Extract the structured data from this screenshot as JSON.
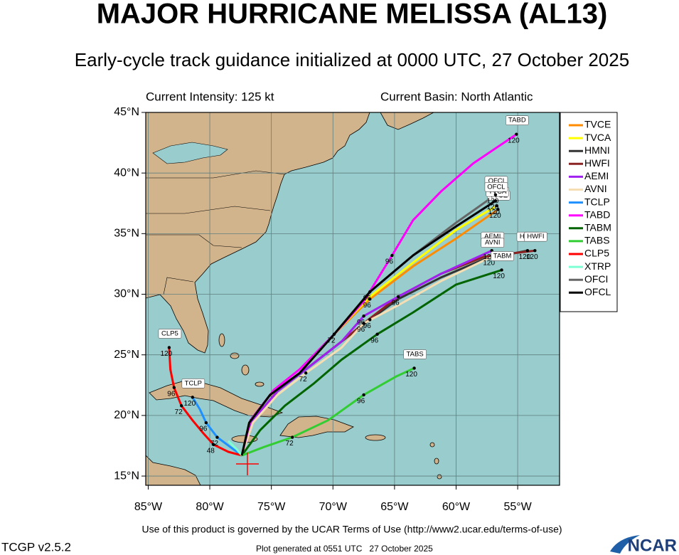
{
  "header": {
    "title": "MAJOR HURRICANE MELISSA (AL13)",
    "subtitle": "Early-cycle track guidance initialized at 0000 UTC, 27 October 2025",
    "current_intensity": "Current Intensity: 125 kt",
    "current_basin": "Current Basin: North Atlantic"
  },
  "map": {
    "xlim": [
      -85.2,
      -51.6
    ],
    "ylim": [
      14.24,
      45
    ],
    "xticks": [
      {
        "value": -85,
        "label": "85°W"
      },
      {
        "value": -80,
        "label": "80°W"
      },
      {
        "value": -75,
        "label": "75°W"
      },
      {
        "value": -70,
        "label": "70°W"
      },
      {
        "value": -65,
        "label": "65°W"
      },
      {
        "value": -60,
        "label": "60°W"
      },
      {
        "value": -55,
        "label": "55°W"
      }
    ],
    "yticks": [
      {
        "value": 15,
        "label": "15°N"
      },
      {
        "value": 20,
        "label": "20°N"
      },
      {
        "value": 25,
        "label": "25°N"
      },
      {
        "value": 30,
        "label": "30°N"
      },
      {
        "value": 35,
        "label": "35°N"
      },
      {
        "value": 40,
        "label": "40°N"
      },
      {
        "value": 45,
        "label": "45°N"
      }
    ],
    "grid": true,
    "tracks": [
      {
        "name": "TVCE",
        "color": "#ff8c00",
        "lon": [
          -77.4,
          -76.8,
          -75.1,
          -72.7,
          -69.9,
          -67.0,
          -63.5,
          -60.0,
          -56.6
        ],
        "lat": [
          16.7,
          19.4,
          21.7,
          23.5,
          26.7,
          29.6,
          32.3,
          34.6,
          37.0
        ],
        "taus": [
          null,
          null,
          null,
          null,
          72,
          96,
          null,
          null,
          120
        ]
      },
      {
        "name": "TVCA",
        "color": "#ffff00",
        "lon": [
          -77.4,
          -76.8,
          -75.1,
          -72.7,
          -69.9,
          -67.0,
          -63.5,
          -60.0,
          -56.7
        ],
        "lat": [
          16.7,
          19.4,
          21.7,
          23.5,
          26.7,
          29.8,
          32.6,
          35.3,
          37.3
        ],
        "taus": [
          null,
          null,
          null,
          null,
          null,
          null,
          null,
          null,
          120
        ]
      },
      {
        "name": "HMNI",
        "color": "#333333",
        "lon": [
          -77.4,
          -76.5,
          -74.5,
          -72.2,
          -69.3,
          -67.0,
          -64.7,
          -61.2,
          -57.7,
          -54.2
        ],
        "lat": [
          16.7,
          19.6,
          22.0,
          23.8,
          26.1,
          27.9,
          29.6,
          31.4,
          32.9,
          33.6
        ],
        "taus": [
          null,
          null,
          null,
          null,
          null,
          96,
          null,
          null,
          null,
          120
        ]
      },
      {
        "name": "HWFI",
        "color": "#8b2323",
        "lon": [
          -77.4,
          -76.5,
          -74.5,
          -72.2,
          -69.3,
          -67.0,
          -64.7,
          -61.2,
          -57.7,
          -53.6
        ],
        "lat": [
          16.7,
          19.6,
          22.0,
          23.8,
          26.1,
          28.0,
          29.8,
          31.7,
          33.1,
          33.6
        ],
        "taus": [
          null,
          null,
          null,
          null,
          null,
          null,
          96,
          null,
          null,
          120
        ]
      },
      {
        "name": "AEMI",
        "color": "#a020f0",
        "lon": [
          -77.4,
          -76.5,
          -74.5,
          -72.2,
          -69.3,
          -67.5,
          -64.7,
          -61.2,
          -57.1
        ],
        "lat": [
          16.7,
          19.6,
          22.0,
          23.8,
          26.1,
          28.2,
          29.8,
          31.7,
          33.6
        ],
        "taus": [
          null,
          null,
          null,
          null,
          null,
          96,
          null,
          null,
          120
        ]
      },
      {
        "name": "AVNI",
        "color": "#f5deb3",
        "lon": [
          -77.4,
          -76.5,
          -74.5,
          -72.2,
          -69.3,
          -67.5,
          -64.7,
          -61.2,
          -57.1
        ],
        "lat": [
          16.7,
          19.4,
          21.7,
          23.5,
          25.6,
          27.6,
          29.1,
          31.1,
          33.1
        ],
        "taus": [
          null,
          null,
          null,
          72,
          null,
          96,
          null,
          null,
          120
        ]
      },
      {
        "name": "TCLP",
        "color": "#1e90ff",
        "lon": [
          -77.4,
          -78.2,
          -79.4,
          -80.3,
          -80.8,
          -81.4
        ],
        "lat": [
          16.7,
          17.3,
          18.2,
          19.4,
          20.5,
          21.5
        ],
        "taus": [
          null,
          null,
          72,
          96,
          null,
          120
        ]
      },
      {
        "name": "TABD",
        "color": "#ff00ff",
        "lon": [
          -77.4,
          -76.7,
          -74.8,
          -72.7,
          -69.9,
          -67.5,
          -65.2,
          -63.5,
          -61.2,
          -58.6,
          -55.1
        ],
        "lat": [
          16.7,
          19.6,
          22.1,
          23.8,
          26.7,
          29.4,
          33.2,
          36.1,
          38.5,
          40.8,
          43.2
        ],
        "taus": [
          null,
          null,
          null,
          null,
          null,
          null,
          96,
          null,
          null,
          null,
          120
        ]
      },
      {
        "name": "TABM",
        "color": "#006400",
        "lon": [
          -77.4,
          -75.9,
          -73.9,
          -71.6,
          -69.3,
          -66.4,
          -63.5,
          -60.0,
          -56.3
        ],
        "lat": [
          16.7,
          18.8,
          20.8,
          22.6,
          24.6,
          26.7,
          28.5,
          30.8,
          32.0
        ],
        "taus": [
          null,
          null,
          null,
          null,
          null,
          96,
          null,
          null,
          120
        ]
      },
      {
        "name": "TABS",
        "color": "#32cd32",
        "lon": [
          -77.4,
          -75.6,
          -73.3,
          -70.4,
          -67.5,
          -64.9,
          -63.4
        ],
        "lat": [
          16.7,
          17.4,
          18.2,
          19.6,
          21.7,
          23.2,
          23.9
        ],
        "taus": [
          null,
          null,
          72,
          null,
          96,
          null,
          120
        ]
      },
      {
        "name": "CLP5",
        "color": "#ff0000",
        "lon": [
          -77.4,
          -78.5,
          -79.7,
          -80.5,
          -81.4,
          -82.3,
          -82.9,
          -83.2,
          -83.3
        ],
        "lat": [
          16.7,
          17.0,
          17.6,
          18.5,
          19.6,
          20.8,
          22.3,
          23.8,
          25.6
        ],
        "taus": [
          null,
          null,
          48,
          null,
          null,
          72,
          96,
          null,
          120
        ]
      },
      {
        "name": "XTRP",
        "color": "#7fffd4",
        "lon": [
          -77.4,
          -77.8,
          -78.5
        ],
        "lat": [
          16.7,
          17.2,
          17.9
        ],
        "taus": [
          null,
          null,
          null
        ]
      },
      {
        "name": "OFCI",
        "color": "#666666",
        "lon": [
          -77.4,
          -76.8,
          -75.1,
          -72.7,
          -69.9,
          -67.0,
          -63.5,
          -60.0,
          -56.8
        ],
        "lat": [
          16.7,
          19.4,
          21.7,
          23.5,
          26.7,
          30.2,
          33.2,
          35.9,
          38.2
        ],
        "taus": [
          null,
          null,
          null,
          null,
          null,
          96,
          null,
          null,
          120
        ]
      },
      {
        "name": "OFCL",
        "color": "#000000",
        "lon": [
          -77.4,
          -76.8,
          -75.1,
          -72.7,
          -69.9,
          -67.0,
          -63.5,
          -60.0,
          -56.8
        ],
        "lat": [
          16.7,
          19.4,
          21.7,
          23.5,
          26.7,
          30.2,
          33.2,
          35.6,
          37.7
        ],
        "taus": [
          null,
          null,
          null,
          null,
          null,
          null,
          null,
          null,
          120
        ]
      }
    ]
  },
  "footer": {
    "terms": "Use of this product is governed by the UCAR Terms of Use (http://www2.ucar.edu/terms-of-use)",
    "version": "TCGP v2.5.2",
    "generated": "Plot generated at 0551 UTC   27 October 2025",
    "logo": "NCAR"
  }
}
